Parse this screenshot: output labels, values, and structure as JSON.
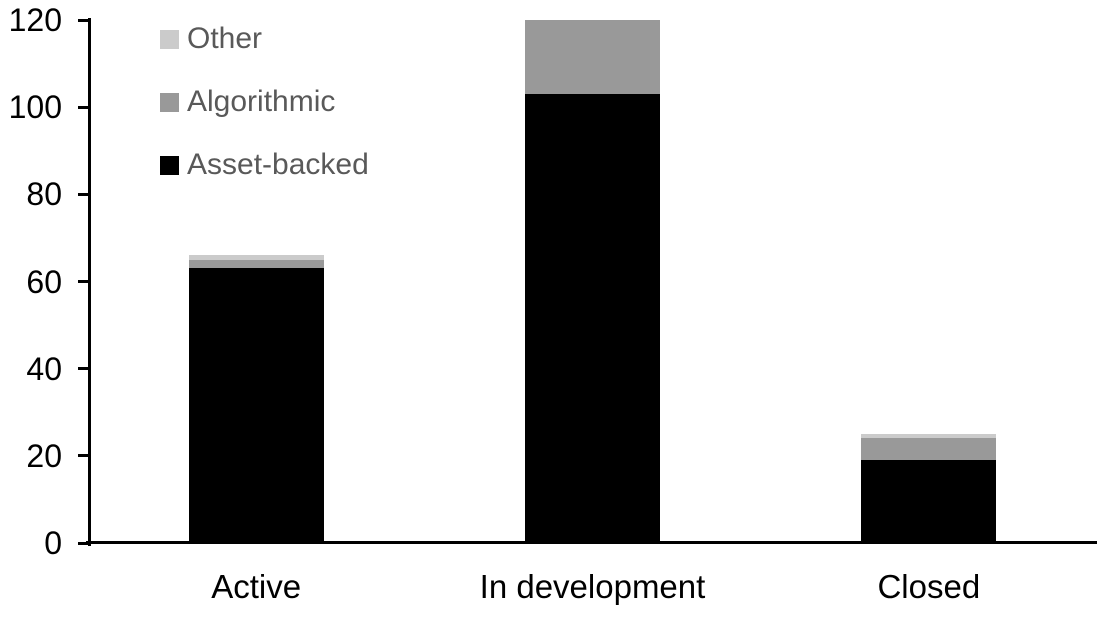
{
  "chart_data": {
    "type": "bar",
    "stacked": true,
    "title": "",
    "xlabel": "",
    "ylabel": "",
    "categories": [
      "Active",
      "In development",
      "Closed"
    ],
    "series": [
      {
        "name": "Asset-backed",
        "color": "#000000",
        "values": [
          63,
          103,
          19
        ]
      },
      {
        "name": "Algorithmic",
        "color": "#999999",
        "values": [
          2,
          17,
          5
        ]
      },
      {
        "name": "Other",
        "color": "#cbcbcb",
        "values": [
          1,
          0,
          1
        ]
      }
    ],
    "yticks": [
      0,
      20,
      40,
      60,
      80,
      100,
      120
    ],
    "ylim": [
      0,
      120
    ],
    "grid": false,
    "legend": {
      "position": "top-left",
      "order_top_to_bottom": [
        "Other",
        "Algorithmic",
        "Asset-backed"
      ],
      "text_color": "#595959"
    },
    "axis_color": "#000000",
    "background_color": "#ffffff"
  }
}
